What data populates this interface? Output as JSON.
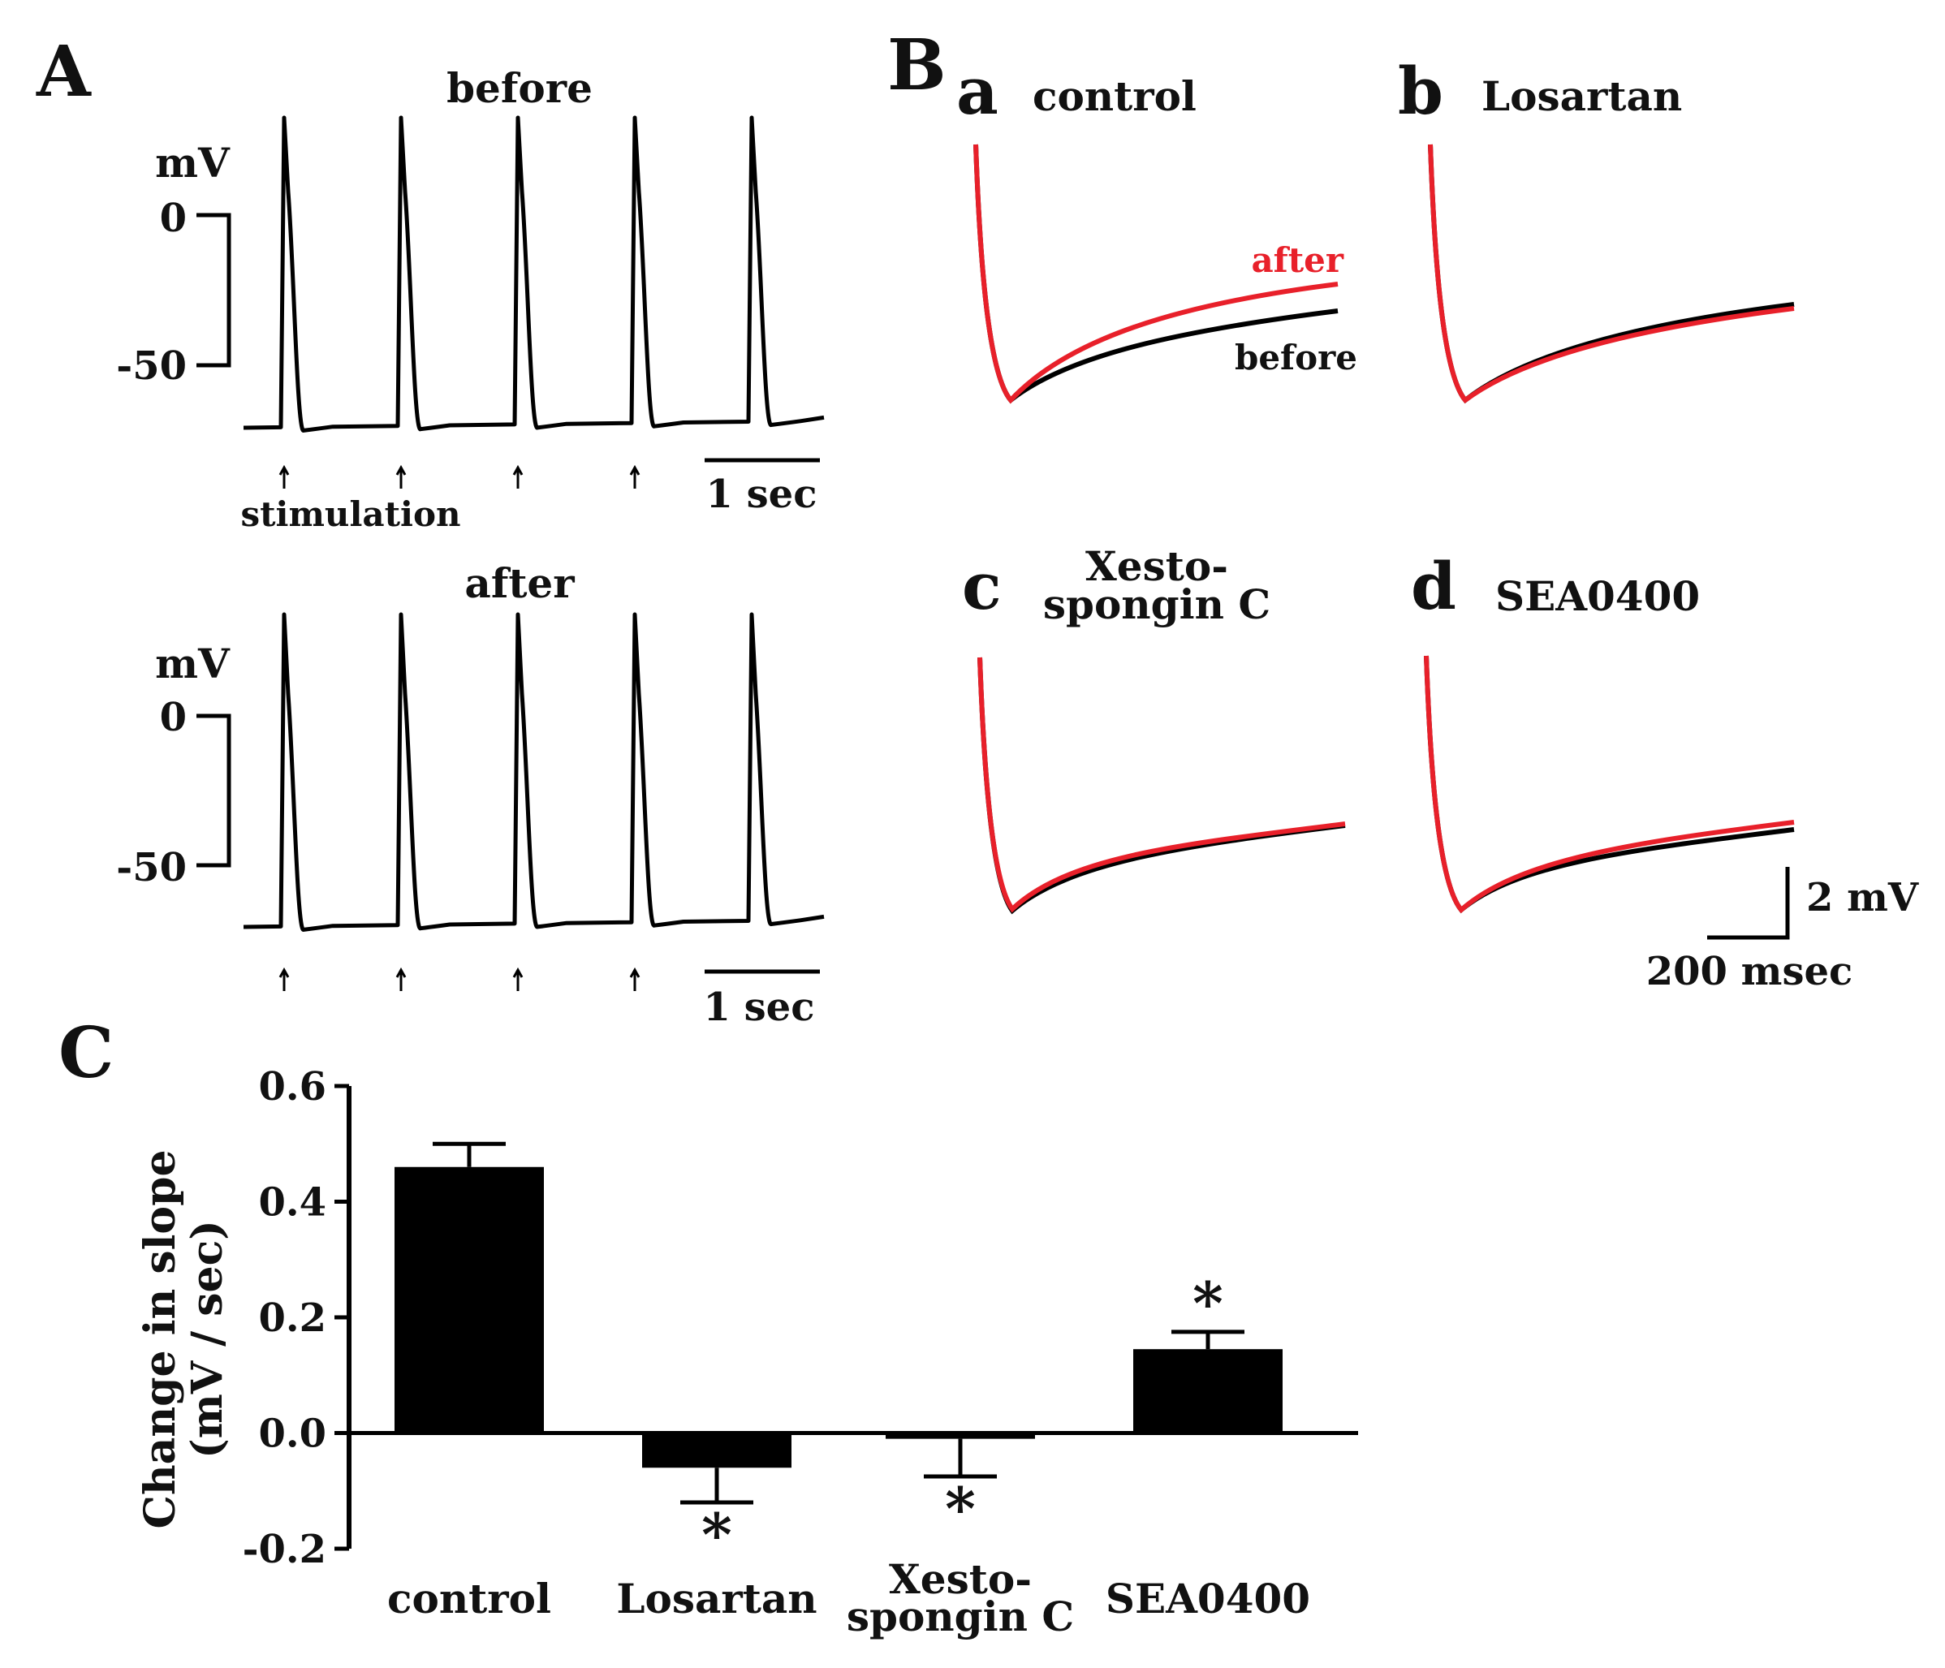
{
  "panels": {
    "A": {
      "letter": "A",
      "top": {
        "title": "before",
        "unit": "mV",
        "tick_0": "0",
        "tick_m50": "-50",
        "scalebar": "1 sec",
        "stimulation_label": "stimulation",
        "stim_count": 4,
        "spike_count": 5
      },
      "bottom": {
        "title": "after",
        "unit": "mV",
        "tick_0": "0",
        "tick_m50": "-50",
        "scalebar": "1 sec",
        "stim_count": 4,
        "spike_count": 5
      }
    },
    "B": {
      "letter": "B",
      "subpanels": [
        {
          "id": "a",
          "letter": "a",
          "name": "control",
          "legend_after": "after",
          "legend_before": "before"
        },
        {
          "id": "b",
          "letter": "b",
          "name": "Losartan"
        },
        {
          "id": "c",
          "letter": "c",
          "name_line1": "Xesto-",
          "name_line2": "spongin C"
        },
        {
          "id": "d",
          "letter": "d",
          "name": "SEA0400"
        }
      ],
      "scalebar_v": "2 mV",
      "scalebar_h": "200 msec",
      "colors": {
        "before": "#000000",
        "after": "#e8202a"
      }
    },
    "C": {
      "letter": "C"
    }
  },
  "chart_data": {
    "type": "bar",
    "categories": [
      "control",
      "Losartan",
      "Xesto-spongin C",
      "SEA0400"
    ],
    "category_lines": [
      [
        "control"
      ],
      [
        "Losartan"
      ],
      [
        "Xesto-",
        "spongin C"
      ],
      [
        "SEA0400"
      ]
    ],
    "values": [
      0.46,
      -0.06,
      -0.01,
      0.145
    ],
    "errors": [
      0.04,
      0.06,
      0.065,
      0.03
    ],
    "significant": [
      false,
      true,
      true,
      true
    ],
    "significance_marker": "*",
    "ylabel_line1": "Change in slope",
    "ylabel_line2": "(mV / sec)",
    "ylim": [
      -0.2,
      0.6
    ],
    "yticks": [
      -0.2,
      0.0,
      0.2,
      0.4,
      0.6
    ],
    "ytick_labels": [
      "-0.2",
      "0.0",
      "0.2",
      "0.4",
      "0.6"
    ],
    "bar_color": "#000000"
  }
}
